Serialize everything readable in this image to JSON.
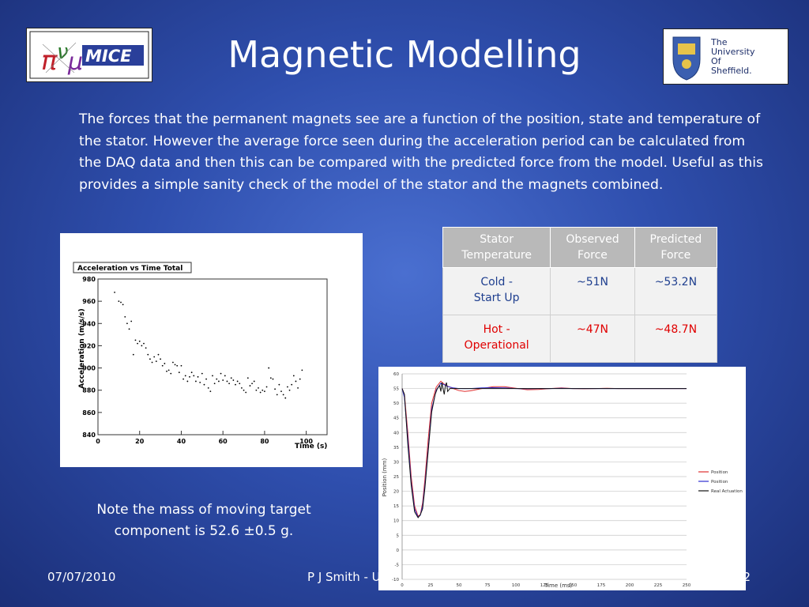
{
  "slide": {
    "title": "Magnetic Modelling",
    "body": "The forces that the permanent magnets see are a function of the position, state and temperature of the stator. However the average force seen during the acceleration period can be calculated from the DAQ data and then this can be compared with the predicted force from the model. Useful as this provides a simple sanity check of the model of the stator and the magnets combined.",
    "note": "Note the mass of moving target component is  52.6 ±0.5 g.",
    "footer": {
      "date": "07/07/2010",
      "author": "P J Smith - U",
      "page": "12"
    }
  },
  "logos": {
    "mice": {
      "text": "MICE"
    },
    "sheffield": {
      "line1": "The",
      "line2": "University",
      "line3": "Of",
      "line4": "Sheffield."
    }
  },
  "table": {
    "headers": [
      {
        "line1": "Stator",
        "line2": "Temperature"
      },
      {
        "line1": "Observed",
        "line2": "Force"
      },
      {
        "line1": "Predicted",
        "line2": "Force"
      }
    ],
    "rows": [
      {
        "state_line1": "Cold -",
        "state_line2": "Start Up",
        "observed": "~51N",
        "predicted": "~53.2N",
        "color": "#1f3f8f"
      },
      {
        "state_line1": "Hot  -",
        "state_line2": "Operational",
        "observed": "~47N",
        "predicted": "~48.7N",
        "color": "#e00000"
      }
    ]
  },
  "chart_data": [
    {
      "type": "scatter",
      "title": "Acceleration vs Time Total",
      "xlabel": "Time (s)",
      "ylabel": "Acceleration (m/s/s)",
      "xlim": [
        0,
        110
      ],
      "ylim": [
        840,
        980
      ],
      "xticks": [
        0,
        20,
        40,
        60,
        80,
        100
      ],
      "yticks": [
        840,
        860,
        880,
        900,
        920,
        940,
        960,
        980
      ],
      "grid": false,
      "points": [
        [
          8,
          968
        ],
        [
          10,
          960
        ],
        [
          11,
          959
        ],
        [
          12,
          957
        ],
        [
          13,
          946
        ],
        [
          14,
          940
        ],
        [
          15,
          935
        ],
        [
          16,
          942
        ],
        [
          17,
          912
        ],
        [
          18,
          925
        ],
        [
          19,
          922
        ],
        [
          20,
          924
        ],
        [
          21,
          920
        ],
        [
          22,
          922
        ],
        [
          23,
          918
        ],
        [
          24,
          912
        ],
        [
          25,
          908
        ],
        [
          26,
          905
        ],
        [
          27,
          910
        ],
        [
          28,
          906
        ],
        [
          29,
          912
        ],
        [
          30,
          908
        ],
        [
          31,
          902
        ],
        [
          32,
          904
        ],
        [
          33,
          897
        ],
        [
          34,
          898
        ],
        [
          35,
          895
        ],
        [
          36,
          905
        ],
        [
          37,
          903
        ],
        [
          38,
          902
        ],
        [
          39,
          896
        ],
        [
          40,
          902
        ],
        [
          41,
          890
        ],
        [
          42,
          893
        ],
        [
          43,
          888
        ],
        [
          44,
          892
        ],
        [
          45,
          896
        ],
        [
          46,
          893
        ],
        [
          47,
          888
        ],
        [
          48,
          892
        ],
        [
          49,
          887
        ],
        [
          50,
          895
        ],
        [
          51,
          885
        ],
        [
          52,
          890
        ],
        [
          53,
          882
        ],
        [
          54,
          879
        ],
        [
          55,
          893
        ],
        [
          56,
          886
        ],
        [
          57,
          890
        ],
        [
          58,
          888
        ],
        [
          59,
          895
        ],
        [
          60,
          889
        ],
        [
          61,
          893
        ],
        [
          62,
          888
        ],
        [
          63,
          886
        ],
        [
          64,
          891
        ],
        [
          65,
          889
        ],
        [
          66,
          885
        ],
        [
          67,
          888
        ],
        [
          68,
          886
        ],
        [
          69,
          882
        ],
        [
          70,
          880
        ],
        [
          71,
          878
        ],
        [
          72,
          891
        ],
        [
          73,
          884
        ],
        [
          74,
          886
        ],
        [
          75,
          888
        ],
        [
          76,
          880
        ],
        [
          77,
          882
        ],
        [
          78,
          878
        ],
        [
          79,
          880
        ],
        [
          80,
          879
        ],
        [
          81,
          883
        ],
        [
          82,
          900
        ],
        [
          83,
          891
        ],
        [
          84,
          890
        ],
        [
          85,
          881
        ],
        [
          86,
          876
        ],
        [
          87,
          885
        ],
        [
          88,
          879
        ],
        [
          89,
          876
        ],
        [
          90,
          873
        ],
        [
          91,
          883
        ],
        [
          92,
          880
        ],
        [
          93,
          885
        ],
        [
          94,
          893
        ],
        [
          95,
          888
        ],
        [
          96,
          882
        ],
        [
          97,
          890
        ],
        [
          98,
          898
        ]
      ]
    },
    {
      "type": "line",
      "title": "",
      "xlabel": "Time (ms)",
      "ylabel": "Position (mm)",
      "xlim": [
        0,
        250
      ],
      "ylim": [
        -10,
        60
      ],
      "xticks": [
        0,
        25,
        50,
        75,
        100,
        125,
        150,
        175,
        200,
        225,
        250
      ],
      "yticks": [
        -10,
        -5,
        0,
        5,
        10,
        15,
        20,
        25,
        30,
        35,
        40,
        45,
        50,
        55,
        60
      ],
      "grid": true,
      "legend_position": "right",
      "series": [
        {
          "name": "Position",
          "color": "#e03030",
          "x": [
            0,
            2,
            5,
            8,
            11,
            14,
            16,
            18,
            20,
            23,
            26,
            30,
            34,
            37,
            40,
            45,
            50,
            55,
            60,
            70,
            80,
            90,
            100,
            110,
            120,
            130,
            140,
            150,
            160,
            170,
            180,
            190,
            200,
            210,
            220,
            230,
            250
          ],
          "y": [
            55,
            53,
            40,
            25,
            15,
            11.5,
            12,
            16,
            24,
            38,
            50,
            55.5,
            57.5,
            56.5,
            55.8,
            55,
            54.3,
            54,
            54.2,
            55,
            55.6,
            55.6,
            55.1,
            54.6,
            54.7,
            55,
            55.2,
            55,
            54.9,
            55,
            55.1,
            55,
            55,
            55,
            55,
            55,
            55
          ]
        },
        {
          "name": "Position",
          "color": "#3030d0",
          "x": [
            0,
            2,
            5,
            8,
            11,
            14,
            16,
            18,
            20,
            23,
            26,
            30,
            34,
            37,
            40,
            45,
            50,
            55,
            60,
            70,
            80,
            90,
            100,
            110,
            120,
            130,
            140,
            150,
            160,
            170,
            180,
            190,
            200,
            210,
            220,
            230,
            250
          ],
          "y": [
            55,
            52,
            38,
            23,
            14,
            11.2,
            11.8,
            15,
            22,
            35,
            48,
            54.5,
            56.8,
            56.3,
            55.7,
            55.2,
            55,
            55,
            55,
            55.2,
            55.3,
            55.2,
            55,
            54.9,
            55,
            55,
            55.1,
            55,
            55,
            55,
            55,
            55,
            55,
            55,
            55,
            55,
            55
          ]
        },
        {
          "name": "Real Actuation",
          "color": "#111111",
          "x": [
            0,
            2,
            5,
            8,
            11,
            14,
            16,
            18,
            20,
            23,
            26,
            29,
            31,
            33,
            34,
            35,
            36,
            37,
            38,
            39,
            40,
            42,
            45,
            50,
            60,
            80,
            100,
            150,
            200,
            250
          ],
          "y": [
            55,
            53,
            36,
            22,
            13,
            11,
            12,
            14,
            21,
            34,
            47,
            53,
            55,
            56,
            54,
            57,
            55,
            53,
            56,
            57,
            54,
            55,
            55,
            55,
            55,
            55,
            55,
            55,
            55,
            55
          ]
        }
      ]
    }
  ]
}
